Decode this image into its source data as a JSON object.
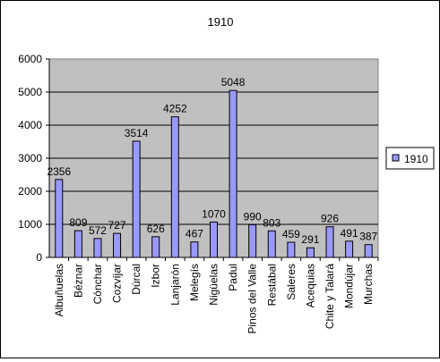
{
  "chart_data": {
    "type": "bar",
    "title": "1910",
    "xlabel": "",
    "ylabel": "",
    "categories": [
      "Albuñuelas",
      "Béznar",
      "Cónchar",
      "Cozvíjar",
      "Dúrcal",
      "Izbor",
      "Lanjarón",
      "Melegís",
      "Nigüelas",
      "Padul",
      "Pinos del Valle",
      "Restábal",
      "Saleres",
      "Acequias",
      "Chite y Talará",
      "Mondújar",
      "Murchas"
    ],
    "series": [
      {
        "name": "1910",
        "values": [
          2356,
          809,
          572,
          727,
          3514,
          626,
          4252,
          467,
          1070,
          5048,
          990,
          803,
          459,
          291,
          926,
          491,
          387
        ],
        "color": "#9999ff"
      }
    ],
    "ylim": [
      0,
      6000
    ],
    "yticks": [
      0,
      1000,
      2000,
      3000,
      4000,
      5000,
      6000
    ],
    "grid": true,
    "plot_background": "#c0c0c0",
    "legend_position": "right"
  }
}
